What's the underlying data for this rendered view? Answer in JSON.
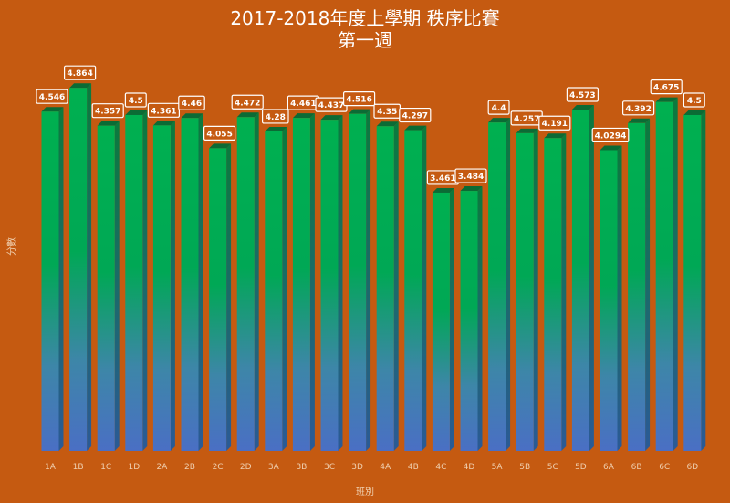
{
  "title_line1": "2017-2018年度上學期 秩序比賽",
  "title_line2": "第一週",
  "colors": {
    "background": "#c55a11",
    "bar_top": "#00b050",
    "bar_bottom": "#4472c4",
    "bar_side": "#0f7a3c",
    "bar_cap": "#0b6b35",
    "label_bg": "#c55a11",
    "label_border": "#ffffff"
  },
  "chart_data": {
    "type": "bar",
    "title": "2017-2018年度上學期 秩序比賽 第一週",
    "xlabel": "班別",
    "ylabel": "分數",
    "ylim": [
      0,
      5
    ],
    "grid": false,
    "legend": "none",
    "categories": [
      "1A",
      "1B",
      "1C",
      "1D",
      "2A",
      "2B",
      "2C",
      "2D",
      "3A",
      "3B",
      "3C",
      "3D",
      "4A",
      "4B",
      "4C",
      "4D",
      "5A",
      "5B",
      "5C",
      "5D",
      "6A",
      "6B",
      "6C",
      "6D"
    ],
    "values": [
      4.546,
      4.864,
      4.357,
      4.5,
      4.361,
      4.46,
      4.055,
      4.472,
      4.28,
      4.461,
      4.437,
      4.516,
      4.35,
      4.297,
      3.461,
      3.484,
      4.4,
      4.257,
      4.191,
      4.573,
      4.0294,
      4.392,
      4.675,
      4.5
    ],
    "value_labels": [
      "4.546",
      "4.864",
      "4.357",
      "4.5",
      "4.361",
      "4.46",
      "4.055",
      "4.472",
      "4.28",
      "4.461",
      "4.437",
      "4.516",
      "4.35",
      "4.297",
      "3.461",
      "3.484",
      "4.4",
      "4.257",
      "4.191",
      "4.573",
      "4.0294",
      "4.392",
      "4.675",
      "4.5"
    ]
  }
}
